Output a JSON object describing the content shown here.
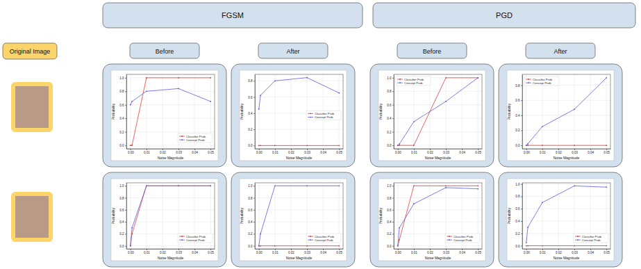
{
  "header": {
    "methods": [
      "FGSM",
      "PGD"
    ],
    "original_image": "Original Image",
    "columns": [
      "Before",
      "After",
      "Before",
      "After"
    ]
  },
  "chart_data": [
    {
      "type": "line",
      "x_label": "Noise Magnitude",
      "y_label": "Probability",
      "x": [
        0,
        0.001,
        0.01,
        0.03,
        0.05
      ],
      "series": [
        {
          "name": "Classifier Prob.",
          "color": "#e03c3c",
          "marker": "o",
          "values": [
            0,
            0,
            1,
            1,
            1
          ]
        },
        {
          "name": "Concept Prob.",
          "color": "#5c5cdc",
          "marker": "o",
          "values": [
            0.6,
            0.65,
            0.8,
            0.84,
            0.65
          ]
        }
      ],
      "xlim": [
        -0.0025,
        0.0525
      ],
      "xticks": [
        {
          "value": 0,
          "label": "0.00"
        },
        {
          "value": 0.01,
          "label": "0.01"
        },
        {
          "value": 0.02,
          "label": "0.02"
        },
        {
          "value": 0.03,
          "label": "0.03"
        },
        {
          "value": 0.04,
          "label": "0.04"
        },
        {
          "value": 0.05,
          "label": "0.05"
        }
      ],
      "ylim": [
        -0.05,
        1.05
      ],
      "yticks": [
        {
          "value": 0,
          "label": "0.0"
        },
        {
          "value": 0.2,
          "label": "0.2"
        },
        {
          "value": 0.4,
          "label": "0.4"
        },
        {
          "value": 0.6,
          "label": "0.6"
        },
        {
          "value": 0.8,
          "label": "0.8"
        },
        {
          "value": 1,
          "label": "1.0"
        }
      ],
      "grid": true,
      "legend": "lower right"
    },
    {
      "type": "line",
      "x_label": "Noise Magnitude",
      "y_label": "Probability",
      "x": [
        0,
        0.001,
        0.01,
        0.03,
        0.05
      ],
      "series": [
        {
          "name": "Classifier Prob.",
          "color": "#e03c3c",
          "marker": "o",
          "values": [
            0,
            0,
            0,
            0,
            0
          ]
        },
        {
          "name": "Concept Prob.",
          "color": "#5c5cdc",
          "marker": "o",
          "values": [
            0.45,
            0.62,
            0.8,
            0.84,
            0.65
          ]
        }
      ],
      "xlim": [
        -0.0025,
        0.0525
      ],
      "xticks": [
        {
          "value": 0,
          "label": "0.00"
        },
        {
          "value": 0.01,
          "label": "0.01"
        },
        {
          "value": 0.02,
          "label": "0.02"
        },
        {
          "value": 0.03,
          "label": "0.03"
        },
        {
          "value": 0.04,
          "label": "0.04"
        },
        {
          "value": 0.05,
          "label": "0.05"
        }
      ],
      "ylim": [
        -0.04,
        0.88
      ],
      "yticks": [
        {
          "value": 0,
          "label": "0.0"
        },
        {
          "value": 0.2,
          "label": "0.2"
        },
        {
          "value": 0.4,
          "label": "0.4"
        },
        {
          "value": 0.6,
          "label": "0.6"
        },
        {
          "value": 0.8,
          "label": "0.8"
        }
      ],
      "grid": true,
      "legend": "center right"
    },
    {
      "type": "line",
      "x_label": "Noise Magnitude",
      "y_label": "Probability",
      "x": [
        0,
        0.001,
        0.01,
        0.03,
        0.05
      ],
      "series": [
        {
          "name": "Classifier Prob.",
          "color": "#e03c3c",
          "marker": "o",
          "values": [
            0,
            0,
            0,
            1,
            1
          ]
        },
        {
          "name": "Concept Prob.",
          "color": "#5c5cdc",
          "marker": "o",
          "values": [
            0,
            0.02,
            0.35,
            0.65,
            1
          ]
        }
      ],
      "xlim": [
        -0.0025,
        0.0525
      ],
      "xticks": [
        {
          "value": 0,
          "label": "0.00"
        },
        {
          "value": 0.01,
          "label": "0.01"
        },
        {
          "value": 0.02,
          "label": "0.02"
        },
        {
          "value": 0.03,
          "label": "0.03"
        },
        {
          "value": 0.04,
          "label": "0.04"
        },
        {
          "value": 0.05,
          "label": "0.05"
        }
      ],
      "ylim": [
        -0.05,
        1.05
      ],
      "yticks": [
        {
          "value": 0,
          "label": "0.0"
        },
        {
          "value": 0.2,
          "label": "0.2"
        },
        {
          "value": 0.4,
          "label": "0.4"
        },
        {
          "value": 0.6,
          "label": "0.6"
        },
        {
          "value": 0.8,
          "label": "0.8"
        },
        {
          "value": 1,
          "label": "1.0"
        }
      ],
      "grid": true,
      "legend": "upper left"
    },
    {
      "type": "line",
      "x_label": "Noise Magnitude",
      "y_label": "Probability",
      "x": [
        0,
        0.001,
        0.01,
        0.03,
        0.05
      ],
      "series": [
        {
          "name": "Classifier Prob.",
          "color": "#e03c3c",
          "marker": "o",
          "values": [
            0,
            0,
            0,
            0,
            0
          ]
        },
        {
          "name": "Concept Prob.",
          "color": "#5c5cdc",
          "marker": "o",
          "values": [
            0,
            0.02,
            0.25,
            0.48,
            0.9
          ]
        }
      ],
      "xlim": [
        -0.0025,
        0.0525
      ],
      "xticks": [
        {
          "value": 0,
          "label": "0.00"
        },
        {
          "value": 0.01,
          "label": "0.01"
        },
        {
          "value": 0.02,
          "label": "0.02"
        },
        {
          "value": 0.03,
          "label": "0.03"
        },
        {
          "value": 0.04,
          "label": "0.04"
        },
        {
          "value": 0.05,
          "label": "0.05"
        }
      ],
      "ylim": [
        -0.045,
        0.945
      ],
      "yticks": [
        {
          "value": 0,
          "label": "0.0"
        },
        {
          "value": 0.2,
          "label": "0.2"
        },
        {
          "value": 0.4,
          "label": "0.4"
        },
        {
          "value": 0.6,
          "label": "0.6"
        },
        {
          "value": 0.8,
          "label": "0.8"
        }
      ],
      "grid": true,
      "legend": "upper left"
    },
    {
      "type": "line",
      "x_label": "Noise Magnitude",
      "y_label": "Probability",
      "x": [
        0,
        0.001,
        0.01,
        0.03,
        0.05
      ],
      "series": [
        {
          "name": "Classifier Prob.",
          "color": "#e03c3c",
          "marker": "o",
          "values": [
            0,
            0.2,
            1,
            1,
            1
          ]
        },
        {
          "name": "Concept Prob.",
          "color": "#5c5cdc",
          "marker": "o",
          "values": [
            0,
            0.3,
            1,
            1,
            1
          ]
        }
      ],
      "xlim": [
        -0.0025,
        0.0525
      ],
      "xticks": [
        {
          "value": 0,
          "label": "0.00"
        },
        {
          "value": 0.01,
          "label": "0.01"
        },
        {
          "value": 0.02,
          "label": "0.02"
        },
        {
          "value": 0.03,
          "label": "0.03"
        },
        {
          "value": 0.04,
          "label": "0.04"
        },
        {
          "value": 0.05,
          "label": "0.05"
        }
      ],
      "ylim": [
        -0.05,
        1.05
      ],
      "yticks": [
        {
          "value": 0,
          "label": "0.0"
        },
        {
          "value": 0.2,
          "label": "0.2"
        },
        {
          "value": 0.4,
          "label": "0.4"
        },
        {
          "value": 0.6,
          "label": "0.6"
        },
        {
          "value": 0.8,
          "label": "0.8"
        },
        {
          "value": 1,
          "label": "1.0"
        }
      ],
      "grid": true,
      "legend": "lower right"
    },
    {
      "type": "line",
      "x_label": "Noise Magnitude",
      "y_label": "Probability",
      "x": [
        0,
        0.001,
        0.01,
        0.03,
        0.05
      ],
      "series": [
        {
          "name": "Classifier Prob.",
          "color": "#e03c3c",
          "marker": "o",
          "values": [
            0,
            0,
            0,
            0,
            0
          ]
        },
        {
          "name": "Concept Prob.",
          "color": "#5c5cdc",
          "marker": "o",
          "values": [
            0,
            0.2,
            1,
            1,
            1
          ]
        }
      ],
      "xlim": [
        -0.0025,
        0.0525
      ],
      "xticks": [
        {
          "value": 0,
          "label": "0.00"
        },
        {
          "value": 0.01,
          "label": "0.01"
        },
        {
          "value": 0.02,
          "label": "0.02"
        },
        {
          "value": 0.03,
          "label": "0.03"
        },
        {
          "value": 0.04,
          "label": "0.04"
        },
        {
          "value": 0.05,
          "label": "0.05"
        }
      ],
      "ylim": [
        -0.05,
        1.05
      ],
      "yticks": [
        {
          "value": 0,
          "label": "0.0"
        },
        {
          "value": 0.2,
          "label": "0.2"
        },
        {
          "value": 0.4,
          "label": "0.4"
        },
        {
          "value": 0.6,
          "label": "0.6"
        },
        {
          "value": 0.8,
          "label": "0.8"
        },
        {
          "value": 1,
          "label": "1.0"
        }
      ],
      "grid": true,
      "legend": "lower right"
    },
    {
      "type": "line",
      "x_label": "Noise Magnitude",
      "y_label": "Probability",
      "x": [
        0,
        0.001,
        0.01,
        0.03,
        0.05
      ],
      "series": [
        {
          "name": "Classifier Prob.",
          "color": "#e03c3c",
          "marker": "o",
          "values": [
            0,
            0.1,
            1,
            1,
            1
          ]
        },
        {
          "name": "Concept Prob.",
          "color": "#5c5cdc",
          "marker": "o",
          "values": [
            0,
            0.3,
            0.7,
            0.97,
            0.95
          ]
        }
      ],
      "xlim": [
        -0.0025,
        0.0525
      ],
      "xticks": [
        {
          "value": 0,
          "label": "0.00"
        },
        {
          "value": 0.01,
          "label": "0.01"
        },
        {
          "value": 0.02,
          "label": "0.02"
        },
        {
          "value": 0.03,
          "label": "0.03"
        },
        {
          "value": 0.04,
          "label": "0.04"
        },
        {
          "value": 0.05,
          "label": "0.05"
        }
      ],
      "ylim": [
        -0.05,
        1.05
      ],
      "yticks": [
        {
          "value": 0,
          "label": "0.0"
        },
        {
          "value": 0.2,
          "label": "0.2"
        },
        {
          "value": 0.4,
          "label": "0.4"
        },
        {
          "value": 0.6,
          "label": "0.6"
        },
        {
          "value": 0.8,
          "label": "0.8"
        },
        {
          "value": 1,
          "label": "1.0"
        }
      ],
      "grid": true,
      "legend": "lower right"
    },
    {
      "type": "line",
      "x_label": "Noise Magnitude",
      "y_label": "Probability",
      "x": [
        0,
        0.001,
        0.01,
        0.03,
        0.05
      ],
      "series": [
        {
          "name": "Classifier Prob.",
          "color": "#e03c3c",
          "marker": "o",
          "values": [
            0,
            0,
            0,
            0,
            0
          ]
        },
        {
          "name": "Concept Prob.",
          "color": "#5c5cdc",
          "marker": "o",
          "values": [
            0.05,
            0.3,
            0.7,
            0.97,
            0.95
          ]
        }
      ],
      "xlim": [
        -0.0025,
        0.0525
      ],
      "xticks": [
        {
          "value": 0,
          "label": "0.00"
        },
        {
          "value": 0.01,
          "label": "0.01"
        },
        {
          "value": 0.02,
          "label": "0.02"
        },
        {
          "value": 0.03,
          "label": "0.03"
        },
        {
          "value": 0.04,
          "label": "0.04"
        },
        {
          "value": 0.05,
          "label": "0.05"
        }
      ],
      "ylim": [
        -0.05,
        1.02
      ],
      "yticks": [
        {
          "value": 0,
          "label": "0.0"
        },
        {
          "value": 0.2,
          "label": "0.2"
        },
        {
          "value": 0.4,
          "label": "0.4"
        },
        {
          "value": 0.6,
          "label": "0.6"
        },
        {
          "value": 0.8,
          "label": "0.8"
        },
        {
          "value": 1,
          "label": "1.0"
        }
      ],
      "grid": true,
      "legend": "lower right"
    }
  ]
}
